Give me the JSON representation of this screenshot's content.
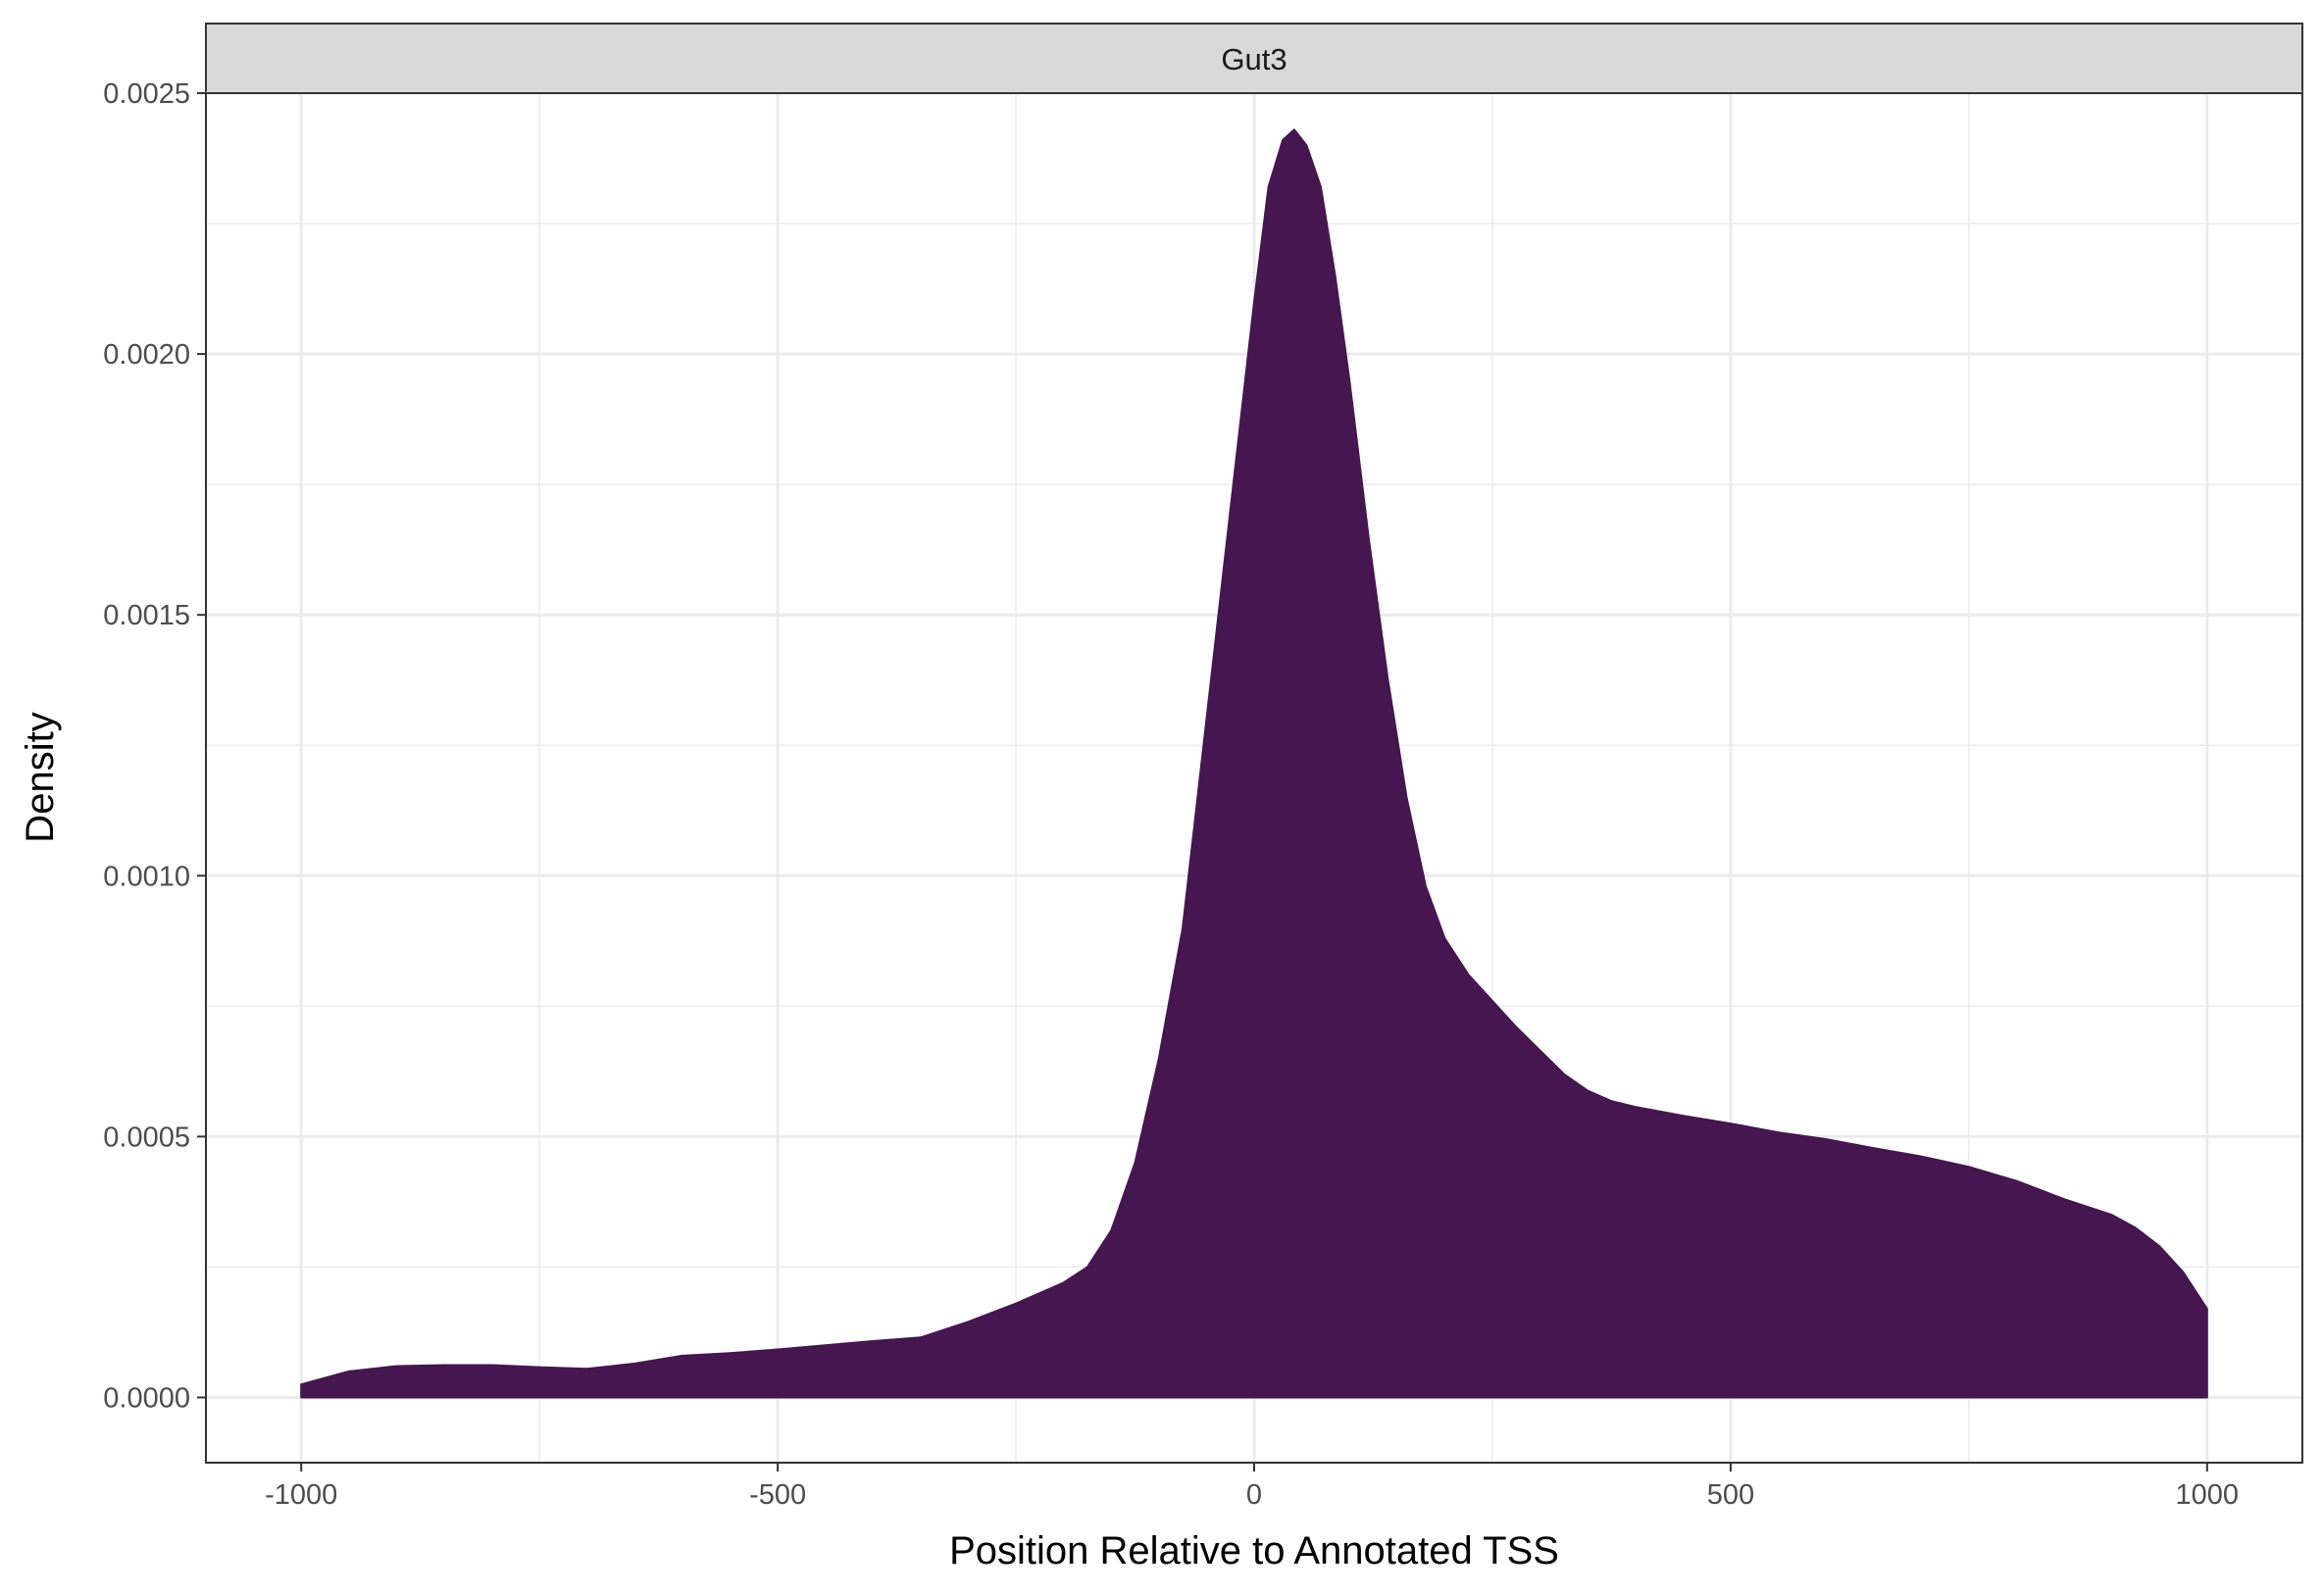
{
  "chart_data": {
    "type": "area",
    "facet_label": "Gut3",
    "xlabel": "Position Relative to Annotated TSS",
    "ylabel": "Density",
    "xlim": [
      -1100,
      1100
    ],
    "ylim": [
      -0.000125,
      0.0025
    ],
    "x_ticks": [
      -1000,
      -500,
      0,
      500,
      1000
    ],
    "x_tick_labels": [
      "-1000",
      "-500",
      "0",
      "500",
      "1000"
    ],
    "y_ticks": [
      0,
      0.0005,
      0.001,
      0.0015,
      0.002,
      0.0025
    ],
    "y_tick_labels": [
      "0.0000",
      "0.0005",
      "0.0010",
      "0.0015",
      "0.0020",
      "0.0025"
    ],
    "grid": true,
    "fill_color": "#45164f",
    "x": [
      -1000,
      -950,
      -900,
      -850,
      -800,
      -750,
      -700,
      -650,
      -600,
      -550,
      -500,
      -450,
      -400,
      -350,
      -300,
      -250,
      -200,
      -175,
      -150,
      -125,
      -100,
      -75,
      -50,
      -25,
      0,
      15,
      30,
      42,
      55,
      70,
      85,
      100,
      120,
      140,
      160,
      180,
      200,
      225,
      250,
      275,
      300,
      325,
      350,
      375,
      400,
      450,
      500,
      550,
      600,
      650,
      700,
      750,
      800,
      850,
      900,
      925,
      950,
      975,
      1000
    ],
    "y": [
      2.5e-05,
      5e-05,
      6e-05,
      6.2e-05,
      6.2e-05,
      5.8e-05,
      5.5e-05,
      6.5e-05,
      8e-05,
      8.5e-05,
      9.2e-05,
      0.0001,
      0.000108,
      0.000115,
      0.000145,
      0.00018,
      0.00022,
      0.00025,
      0.00032,
      0.00045,
      0.00065,
      0.0009,
      0.0013,
      0.0017,
      0.0021,
      0.00232,
      0.00241,
      0.00243,
      0.0024,
      0.00232,
      0.00215,
      0.00195,
      0.00165,
      0.00138,
      0.00115,
      0.00098,
      0.00088,
      0.00081,
      0.00076,
      0.00071,
      0.000665,
      0.00062,
      0.000588,
      0.000568,
      0.000557,
      0.00054,
      0.000525,
      0.000508,
      0.000495,
      0.000478,
      0.000462,
      0.000442,
      0.000415,
      0.00038,
      0.00035,
      0.000325,
      0.00029,
      0.00024,
      0.00017
    ]
  }
}
